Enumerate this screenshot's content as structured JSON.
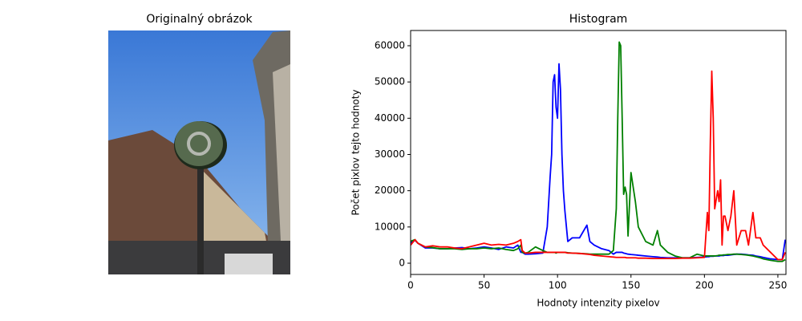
{
  "chart_data": [
    {
      "type": "image",
      "title": "Originalný obrázok"
    },
    {
      "type": "line",
      "title": "Histogram",
      "x_label": "Hodnoty intenzity pixelov",
      "y_label": "Počet pixlov tejto hodnoty",
      "x": [
        0,
        1,
        3,
        5,
        10,
        15,
        20,
        25,
        30,
        35,
        40,
        45,
        50,
        55,
        60,
        65,
        70,
        73,
        75,
        76,
        78,
        80,
        85,
        90,
        93,
        95,
        96,
        97,
        98,
        99,
        100,
        101,
        102,
        103,
        104,
        105,
        107,
        110,
        115,
        120,
        122,
        125,
        130,
        135,
        138,
        140,
        141,
        142,
        143,
        144,
        145,
        146,
        147,
        148,
        150,
        153,
        155,
        160,
        165,
        168,
        170,
        175,
        180,
        185,
        190,
        195,
        200,
        202,
        203,
        204,
        205,
        206,
        207,
        209,
        210,
        211,
        212,
        213,
        214,
        216,
        218,
        220,
        222,
        225,
        228,
        230,
        233,
        235,
        238,
        240,
        245,
        250,
        253,
        255
      ],
      "series": [
        {
          "name": "b",
          "color": "#0000ff",
          "values": [
            5000,
            6000,
            6300,
            5500,
            4200,
            4200,
            4000,
            4000,
            4200,
            4300,
            4000,
            4200,
            4500,
            4200,
            3800,
            4500,
            4200,
            5000,
            3000,
            3000,
            2500,
            2500,
            2600,
            2800,
            10000,
            24000,
            30000,
            50000,
            52000,
            43000,
            40000,
            55000,
            48000,
            30000,
            20000,
            14500,
            6000,
            7000,
            7000,
            10500,
            6000,
            5000,
            4000,
            3500,
            2500,
            3000,
            3000,
            3000,
            3000,
            3000,
            2800,
            2700,
            2600,
            2500,
            2400,
            2300,
            2200,
            2000,
            1800,
            1700,
            1600,
            1500,
            1500,
            1500,
            1500,
            1600,
            1700,
            1800,
            1800,
            1900,
            1900,
            1900,
            2000,
            2000,
            2000,
            2100,
            2100,
            2100,
            2200,
            2200,
            2300,
            2400,
            2500,
            2500,
            2400,
            2300,
            2200,
            2000,
            1800,
            1600,
            1200,
            1000,
            1000,
            6500
          ]
        },
        {
          "name": "g",
          "color": "#008000",
          "values": [
            6000,
            6200,
            6500,
            5500,
            4500,
            4300,
            4000,
            4000,
            4000,
            3800,
            4000,
            4000,
            4200,
            4000,
            4200,
            3800,
            3500,
            4000,
            5000,
            3000,
            2800,
            3000,
            4500,
            3500,
            3000,
            3000,
            3000,
            3000,
            3000,
            2800,
            3000,
            3000,
            3000,
            3000,
            3000,
            3000,
            2900,
            2800,
            2700,
            2600,
            2500,
            2500,
            2500,
            2500,
            3500,
            15000,
            40000,
            61000,
            60000,
            40000,
            19000,
            21000,
            19000,
            7500,
            25000,
            17000,
            10000,
            6000,
            5000,
            9000,
            5000,
            3000,
            2000,
            1500,
            1500,
            2500,
            2000,
            2000,
            2000,
            2000,
            2000,
            2000,
            2000,
            2100,
            2200,
            2200,
            2200,
            2300,
            2300,
            2400,
            2400,
            2500,
            2500,
            2400,
            2300,
            2200,
            2000,
            1800,
            1500,
            1200,
            800,
            500,
            500,
            1000
          ]
        },
        {
          "name": "r",
          "color": "#ff0000",
          "values": [
            5000,
            5500,
            6500,
            5500,
            4500,
            4800,
            4500,
            4500,
            4200,
            4000,
            4500,
            5000,
            5500,
            5000,
            5200,
            5000,
            5500,
            6000,
            6500,
            3500,
            2800,
            2800,
            3000,
            3000,
            3000,
            3000,
            3000,
            3000,
            3000,
            3000,
            3000,
            3000,
            3000,
            3000,
            3000,
            3000,
            2800,
            2800,
            2700,
            2500,
            2400,
            2200,
            2000,
            1800,
            1700,
            1600,
            1600,
            1600,
            1600,
            1600,
            1600,
            1600,
            1500,
            1500,
            1500,
            1500,
            1400,
            1400,
            1300,
            1300,
            1300,
            1300,
            1300,
            1400,
            1400,
            1500,
            1600,
            14000,
            9000,
            33000,
            53000,
            40000,
            15000,
            20000,
            17000,
            23000,
            5000,
            13000,
            13000,
            9000,
            13000,
            20000,
            5000,
            9000,
            9000,
            5000,
            14000,
            7000,
            7000,
            5000,
            3000,
            1000,
            1000,
            3000
          ]
        }
      ],
      "xlim": [
        0,
        255.5
      ],
      "ylim": [
        -3100,
        64200
      ],
      "xticks": [
        0,
        50,
        100,
        150,
        200,
        250
      ],
      "yticks": [
        0,
        10000,
        20000,
        30000,
        40000,
        50000,
        60000
      ]
    }
  ]
}
